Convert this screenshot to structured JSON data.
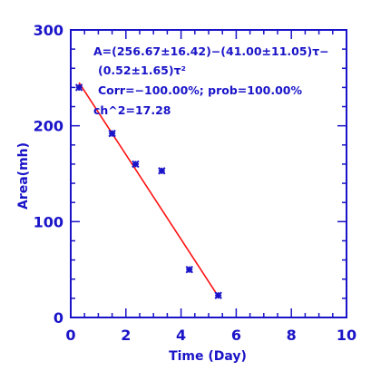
{
  "chart_data": {
    "type": "scatter",
    "xlabel": "Time (Day)",
    "ylabel": "Area(mh)",
    "xlim": [
      0,
      10
    ],
    "ylim": [
      0,
      300
    ],
    "xticks": [
      0,
      2,
      4,
      6,
      8,
      10
    ],
    "yticks": [
      0,
      100,
      200,
      300
    ],
    "grid": false,
    "colors": {
      "axis": "#1a14c8",
      "points": "#1a14c8",
      "fit": "#ff1010"
    },
    "points": [
      {
        "x": 0.3,
        "y": 240
      },
      {
        "x": 1.5,
        "y": 192
      },
      {
        "x": 2.35,
        "y": 160
      },
      {
        "x": 3.3,
        "y": 153
      },
      {
        "x": 4.3,
        "y": 50
      },
      {
        "x": 5.35,
        "y": 23
      }
    ],
    "fit_line": {
      "x": [
        0.3,
        5.35
      ],
      "y": [
        245,
        22
      ]
    },
    "annotations": [
      "A=(256.67±16.42)−(41.00±11.05)τ−",
      "(0.52±1.65)τ²",
      "Corr=−100.00%;  prob=100.00%",
      "ch^2=17.28"
    ]
  }
}
